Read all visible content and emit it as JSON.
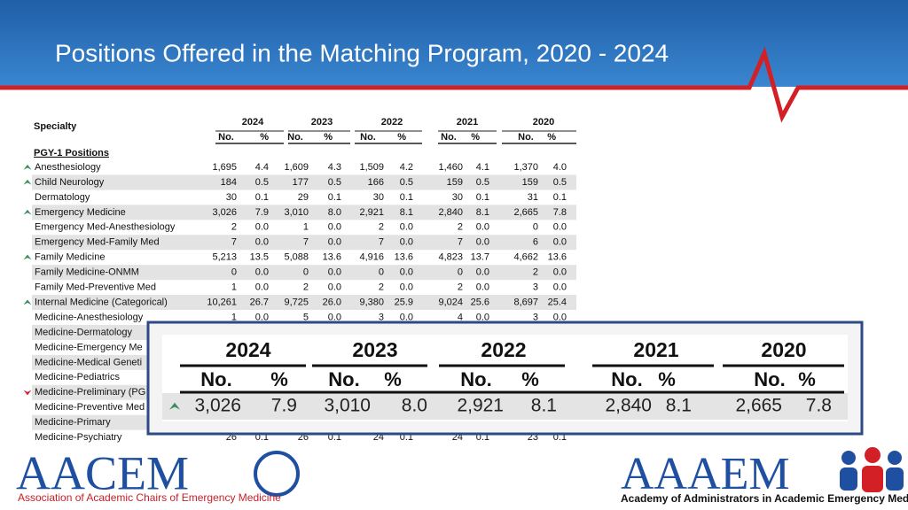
{
  "header": {
    "title": "Positions Offered in the Matching Program, 2020 - 2024"
  },
  "table": {
    "specialty_label": "Specialty",
    "years": [
      "2024",
      "2023",
      "2022",
      "2021",
      "2020"
    ],
    "subheaders": [
      "No.",
      "%"
    ],
    "section": "PGY-1 Positions",
    "rows": [
      {
        "name": "Anesthesiology",
        "trend": "up",
        "cells": [
          "1,695",
          "4.4",
          "1,609",
          "4.3",
          "1,509",
          "4.2",
          "1,460",
          "4.1",
          "1,370",
          "4.0"
        ]
      },
      {
        "name": "Child Neurology",
        "trend": "up",
        "cells": [
          "184",
          "0.5",
          "177",
          "0.5",
          "166",
          "0.5",
          "159",
          "0.5",
          "159",
          "0.5"
        ]
      },
      {
        "name": "Dermatology",
        "cells": [
          "30",
          "0.1",
          "29",
          "0.1",
          "30",
          "0.1",
          "30",
          "0.1",
          "31",
          "0.1"
        ]
      },
      {
        "name": "Emergency Medicine",
        "trend": "up",
        "cells": [
          "3,026",
          "7.9",
          "3,010",
          "8.0",
          "2,921",
          "8.1",
          "2,840",
          "8.1",
          "2,665",
          "7.8"
        ]
      },
      {
        "name": "Emergency Med-Anesthesiology",
        "cells": [
          "2",
          "0.0",
          "1",
          "0.0",
          "2",
          "0.0",
          "2",
          "0.0",
          "0",
          "0.0"
        ]
      },
      {
        "name": "Emergency Med-Family Med",
        "cells": [
          "7",
          "0.0",
          "7",
          "0.0",
          "7",
          "0.0",
          "7",
          "0.0",
          "6",
          "0.0"
        ]
      },
      {
        "name": "Family Medicine",
        "trend": "up",
        "cells": [
          "5,213",
          "13.5",
          "5,088",
          "13.6",
          "4,916",
          "13.6",
          "4,823",
          "13.7",
          "4,662",
          "13.6"
        ]
      },
      {
        "name": "Family Medicine-ONMM",
        "cells": [
          "0",
          "0.0",
          "0",
          "0.0",
          "0",
          "0.0",
          "0",
          "0.0",
          "2",
          "0.0"
        ]
      },
      {
        "name": "Family Med-Preventive Med",
        "cells": [
          "1",
          "0.0",
          "2",
          "0.0",
          "2",
          "0.0",
          "2",
          "0.0",
          "3",
          "0.0"
        ]
      },
      {
        "name": "Internal Medicine (Categorical)",
        "trend": "up",
        "cells": [
          "10,261",
          "26.7",
          "9,725",
          "26.0",
          "9,380",
          "25.9",
          "9,024",
          "25.6",
          "8,697",
          "25.4"
        ]
      },
      {
        "name": "Medicine-Anesthesiology",
        "cells": [
          "1",
          "0.0",
          "5",
          "0.0",
          "3",
          "0.0",
          "4",
          "0.0",
          "3",
          "0.0"
        ]
      },
      {
        "name": "Medicine-Dermatology"
      },
      {
        "name": "Medicine-Emergency Me"
      },
      {
        "name": "Medicine-Medical Geneti"
      },
      {
        "name": "Medicine-Pediatrics"
      },
      {
        "name": "Medicine-Preliminary (PG",
        "trend": "down"
      },
      {
        "name": "Medicine-Preventive Med"
      },
      {
        "name": "Medicine-Primary"
      },
      {
        "name": "Medicine-Psychiatry",
        "cells": [
          "26",
          "0.1",
          "26",
          "0.1",
          "24",
          "0.1",
          "24",
          "0.1",
          "23",
          "0.1"
        ]
      }
    ]
  },
  "zoom": {
    "years": [
      "2024",
      "2023",
      "2022",
      "2021",
      "2020"
    ],
    "subheaders": [
      "No.",
      "%"
    ],
    "trend": "up",
    "cells": [
      "3,026",
      "7.9",
      "3,010",
      "8.0",
      "2,921",
      "8.1",
      "2,840",
      "8.1",
      "2,665",
      "7.8"
    ]
  },
  "logos": {
    "left": {
      "name": "AACEM",
      "caption": "Association of Academic Chairs of Emergency Medicine"
    },
    "right": {
      "name": "AAAEM",
      "caption": "Academy of Administrators in Academic Emergency Medicine"
    }
  }
}
